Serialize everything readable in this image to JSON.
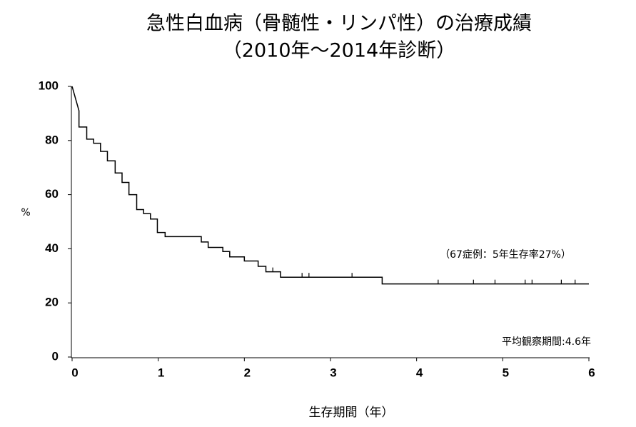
{
  "chart_data": {
    "type": "line",
    "title": "急性白血病（骨髄性・リンパ性）の治療成績",
    "subtitle": "（2010年～2014年診断）",
    "x_label": "生存期間（年）",
    "y_label": "%",
    "annotations": [
      "（67症例：5年生存率27%）",
      "平均観察期間:4.6年"
    ],
    "xlim": [
      0,
      6
    ],
    "xticks": [
      0,
      1,
      2,
      3,
      4,
      5,
      6
    ],
    "ylim": [
      0,
      100
    ],
    "yticks": [
      0,
      20,
      40,
      60,
      80,
      100
    ],
    "grid": false,
    "series": [
      {
        "color": "#000000",
        "x": [
          0,
          0.08,
          0.08,
          0.17,
          0.17,
          0.25,
          0.25,
          0.33,
          0.33,
          0.41,
          0.41,
          0.5,
          0.5,
          0.58,
          0.58,
          0.66,
          0.66,
          0.75,
          0.75,
          0.83,
          0.83,
          0.91,
          0.91,
          0.99,
          0.99,
          1.08,
          1.08,
          1.5,
          1.5,
          1.58,
          1.58,
          1.75,
          1.75,
          1.83,
          1.83,
          2.0,
          2.0,
          2.16,
          2.16,
          2.25,
          2.25,
          2.42,
          2.42,
          3.6,
          3.6,
          6.0
        ],
        "values": [
          100,
          91,
          85,
          85,
          80.5,
          80.5,
          79,
          79,
          76,
          76,
          72.5,
          72.5,
          68,
          68,
          64.5,
          64.5,
          60,
          60,
          54.5,
          54.5,
          53,
          53,
          51,
          51,
          46,
          46,
          44.5,
          44.5,
          42.5,
          42.5,
          40.5,
          40.5,
          39,
          39,
          37,
          37,
          35.5,
          35.5,
          33.5,
          33.5,
          31.5,
          31.5,
          29.5,
          29.5,
          27,
          27
        ]
      }
    ],
    "censored": {
      "x": [
        2.33,
        2.67,
        2.75,
        3.25,
        4.25,
        4.66,
        4.91,
        5.26,
        5.34,
        5.68,
        5.84
      ],
      "values": [
        31.5,
        29.5,
        29.5,
        29.5,
        27,
        27,
        27,
        27,
        27,
        27,
        27
      ]
    }
  }
}
